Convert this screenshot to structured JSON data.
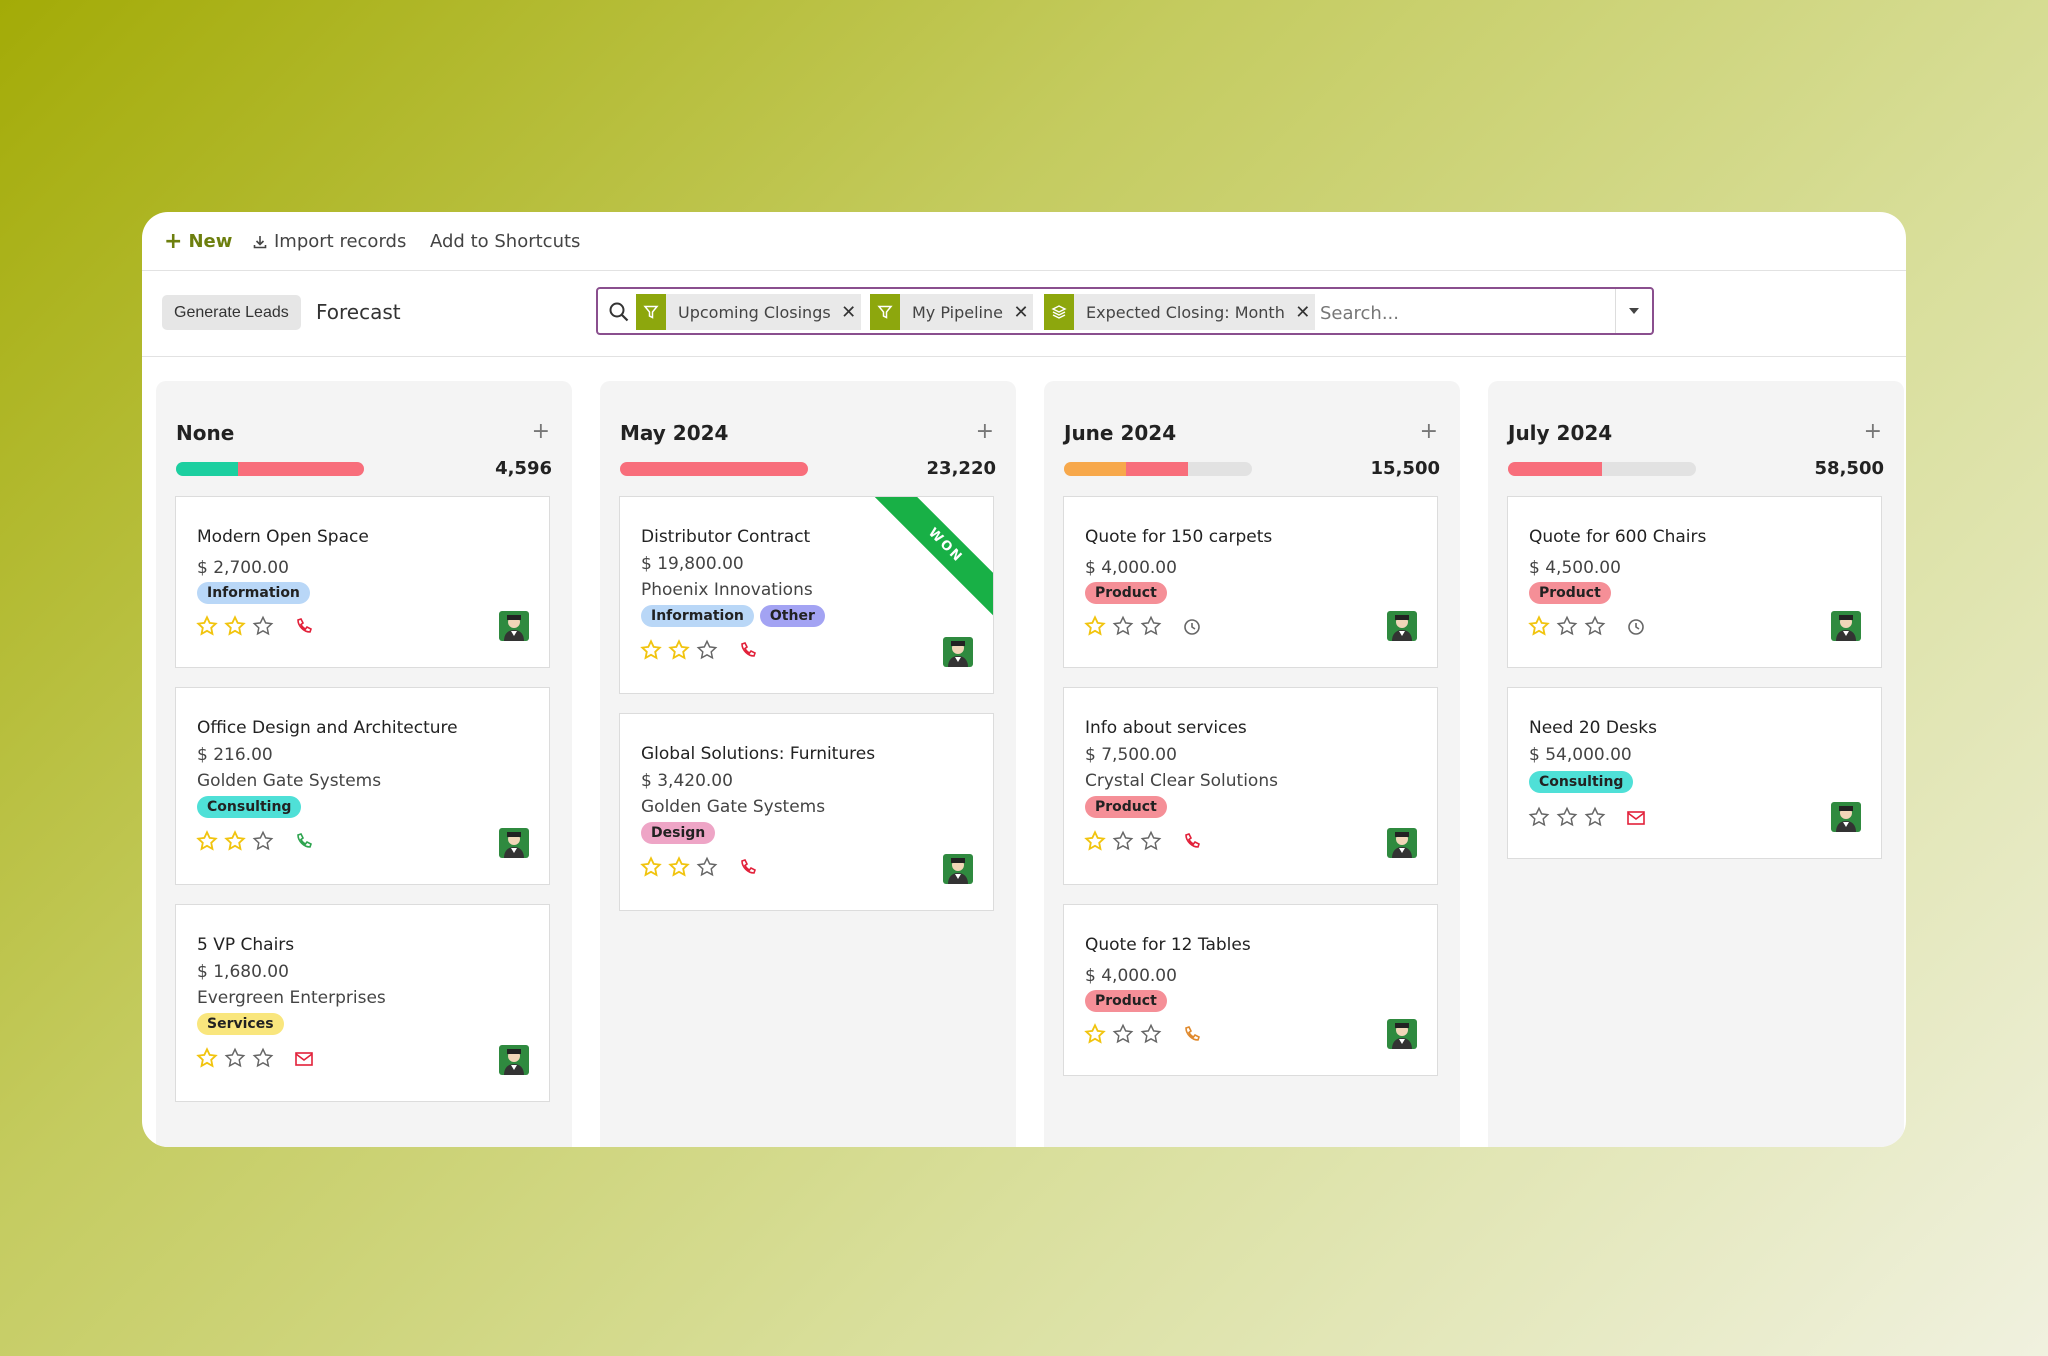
{
  "toolbar": {
    "new_label": "New",
    "import_label": "Import records",
    "shortcuts_label": "Add to Shortcuts"
  },
  "control": {
    "generate_label": "Generate Leads",
    "view_title": "Forecast"
  },
  "search": {
    "facets": [
      {
        "label": "Upcoming Closings",
        "icon": "filter-icon"
      },
      {
        "label": "My Pipeline",
        "icon": "filter-icon"
      },
      {
        "label": "Expected Closing: Month",
        "icon": "group-by-layers-icon"
      }
    ],
    "placeholder": "Search..."
  },
  "colors": {
    "accent": "#8da70d",
    "tag_information": "#b9d7f7",
    "tag_consulting": "#4fe0d7",
    "tag_services": "#f9e67d",
    "tag_design": "#eea5c6",
    "tag_other": "#a3a3f3",
    "tag_product": "#f58f97",
    "won_ribbon": "#18b046",
    "progress_teal": "#1ccfa0",
    "progress_red": "#f86e7b",
    "progress_orange": "#f7a84b",
    "star_filled": "#f1c40f"
  },
  "columns": [
    {
      "title": "None",
      "total": "4,596",
      "cards": [
        {
          "title": "Modern Open Space",
          "amount": "$ 2,700.00",
          "tags": [
            "Information"
          ],
          "stars": 2,
          "activity": "phone-icon"
        },
        {
          "title": "Office Design and Architecture",
          "amount": "$ 216.00",
          "company": "Golden Gate Systems",
          "tags": [
            "Consulting"
          ],
          "stars": 2,
          "activity": "phone-icon"
        },
        {
          "title": "5 VP Chairs",
          "amount": "$ 1,680.00",
          "company": "Evergreen Enterprises",
          "tags": [
            "Services"
          ],
          "stars": 1,
          "activity": "envelope-icon"
        }
      ]
    },
    {
      "title": "May 2024",
      "total": "23,220",
      "cards": [
        {
          "title": "Distributor Contract",
          "amount": "$ 19,800.00",
          "company": "Phoenix Innovations",
          "tags": [
            "Information",
            "Other"
          ],
          "stars": 2,
          "activity": "phone-icon",
          "ribbon": "WON"
        },
        {
          "title": "Global Solutions: Furnitures",
          "amount": "$ 3,420.00",
          "company": "Golden Gate Systems",
          "tags": [
            "Design"
          ],
          "stars": 2,
          "activity": "phone-icon"
        }
      ]
    },
    {
      "title": "June 2024",
      "total": "15,500",
      "cards": [
        {
          "title": "Quote for 150 carpets",
          "amount": "$ 4,000.00",
          "tags": [
            "Product"
          ],
          "stars": 1,
          "activity": "clock-icon"
        },
        {
          "title": "Info about services",
          "amount": "$ 7,500.00",
          "company": "Crystal Clear Solutions",
          "tags": [
            "Product"
          ],
          "stars": 1,
          "activity": "phone-icon"
        },
        {
          "title": "Quote for 12 Tables",
          "amount": "$ 4,000.00",
          "tags": [
            "Product"
          ],
          "stars": 1,
          "activity": "phone-icon"
        }
      ]
    },
    {
      "title": "July 2024",
      "total": "58,500",
      "cards": [
        {
          "title": "Quote for 600 Chairs",
          "amount": "$ 4,500.00",
          "tags": [
            "Product"
          ],
          "stars": 1,
          "activity": "clock-icon"
        },
        {
          "title": "Need 20 Desks",
          "amount": "$ 54,000.00",
          "tags": [
            "Consulting"
          ],
          "stars": 0,
          "activity": "envelope-icon"
        }
      ]
    }
  ]
}
